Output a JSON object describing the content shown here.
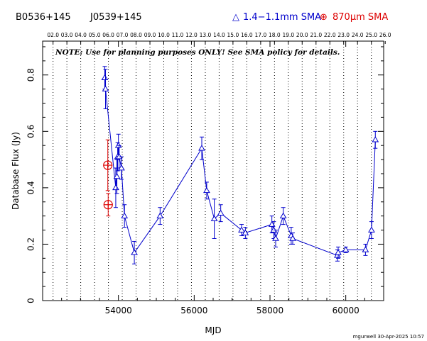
{
  "header": {
    "source_a": "B0536+145",
    "source_b": "J0539+145",
    "legend_mm_symbol": "△",
    "legend_mm_label": "1.4−1.1mm SMA",
    "legend_submm_symbol": "⊕",
    "legend_submm_label": "870μm SMA"
  },
  "note": "NOTE: Use for planning purposes ONLY!  See SMA policy for details.",
  "footer": "mgurwell 30-Apr-2025 10:57",
  "colors": {
    "mm": "#0000cc",
    "submm": "#dd0000",
    "axis": "#000000"
  },
  "chart_data": {
    "type": "scatter",
    "xlabel": "MJD",
    "ylabel": "Database Flux (Jy)",
    "xlim": [
      52000,
      61000
    ],
    "ylim": [
      0,
      0.92
    ],
    "x_ticks": [
      54000,
      56000,
      58000,
      60000
    ],
    "x_tick_labels": [
      "54000",
      "56000",
      "58000",
      "60000"
    ],
    "y_ticks": [
      0,
      0.2,
      0.4,
      0.6,
      0.8
    ],
    "y_tick_labels": [
      "0",
      "0.2",
      "0.4",
      "0.6",
      "0.8"
    ],
    "top_axis": {
      "label_type": "year",
      "years": [
        2002,
        2003,
        2004,
        2005,
        2006,
        2007,
        2008,
        2009,
        2010,
        2011,
        2012,
        2013,
        2014,
        2015,
        2016,
        2017,
        2018,
        2019,
        2020,
        2021,
        2022,
        2023,
        2024,
        2025,
        2026
      ],
      "labels": [
        "02.0",
        "03.0",
        "04.0",
        "05.0",
        "06.0",
        "07.0",
        "08.0",
        "09.0",
        "10.0",
        "11.0",
        "12.0",
        "13.0",
        "14.0",
        "15.0",
        "16.0",
        "17.0",
        "18.0",
        "19.0",
        "20.0",
        "21.0",
        "22.0",
        "23.0",
        "24.0",
        "25.0",
        "26.0"
      ],
      "year_mjd": [
        52275,
        52640,
        53005,
        53371,
        53736,
        54101,
        54466,
        54832,
        55197,
        55562,
        55927,
        56293,
        56658,
        57023,
        57388,
        57754,
        58119,
        58484,
        58849,
        59215,
        59580,
        59945,
        60310,
        60676,
        61041
      ]
    },
    "series": [
      {
        "name": "1.4−1.1mm SMA",
        "marker": "triangle",
        "connected": true,
        "points": [
          {
            "x": 53640,
            "y": 0.79,
            "err": 0.04
          },
          {
            "x": 53660,
            "y": 0.75,
            "err": 0.07
          },
          {
            "x": 53930,
            "y": 0.4,
            "err": 0.07
          },
          {
            "x": 53960,
            "y": 0.44,
            "err": 0.06
          },
          {
            "x": 53980,
            "y": 0.51,
            "err": 0.05
          },
          {
            "x": 54000,
            "y": 0.55,
            "err": 0.04
          },
          {
            "x": 54020,
            "y": 0.51,
            "err": 0.04
          },
          {
            "x": 54080,
            "y": 0.47,
            "err": 0.04
          },
          {
            "x": 54160,
            "y": 0.3,
            "err": 0.04
          },
          {
            "x": 54420,
            "y": 0.17,
            "err": 0.04
          },
          {
            "x": 55100,
            "y": 0.3,
            "err": 0.03
          },
          {
            "x": 56200,
            "y": 0.54,
            "err": 0.04
          },
          {
            "x": 56330,
            "y": 0.39,
            "err": 0.03
          },
          {
            "x": 56530,
            "y": 0.29,
            "err": 0.07
          },
          {
            "x": 56700,
            "y": 0.31,
            "err": 0.03
          },
          {
            "x": 57250,
            "y": 0.25,
            "err": 0.02
          },
          {
            "x": 57350,
            "y": 0.24,
            "err": 0.02
          },
          {
            "x": 58050,
            "y": 0.27,
            "err": 0.03
          },
          {
            "x": 58100,
            "y": 0.25,
            "err": 0.03
          },
          {
            "x": 58150,
            "y": 0.22,
            "err": 0.03
          },
          {
            "x": 58350,
            "y": 0.3,
            "err": 0.03
          },
          {
            "x": 58560,
            "y": 0.23,
            "err": 0.03
          },
          {
            "x": 58600,
            "y": 0.22,
            "err": 0.02
          },
          {
            "x": 59780,
            "y": 0.16,
            "err": 0.02
          },
          {
            "x": 59800,
            "y": 0.17,
            "err": 0.02
          },
          {
            "x": 60000,
            "y": 0.18,
            "err": 0.01
          },
          {
            "x": 60520,
            "y": 0.18,
            "err": 0.02
          },
          {
            "x": 60680,
            "y": 0.25,
            "err": 0.03
          },
          {
            "x": 60780,
            "y": 0.57,
            "err": 0.03
          }
        ]
      },
      {
        "name": "870μm SMA",
        "marker": "circle-plus",
        "connected": false,
        "points": [
          {
            "x": 53720,
            "y": 0.48,
            "err": 0.09
          },
          {
            "x": 53730,
            "y": 0.34,
            "err": 0.04
          }
        ]
      }
    ]
  }
}
